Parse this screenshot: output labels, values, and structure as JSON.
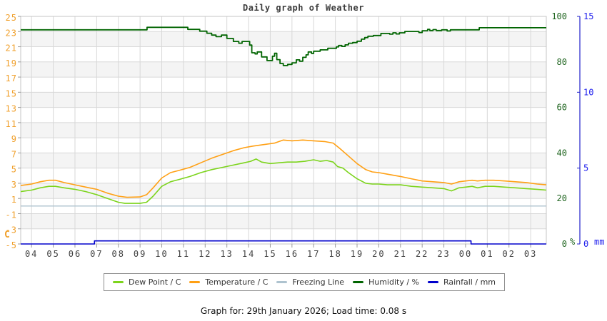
{
  "chart_data": {
    "type": "line",
    "title": "Daily graph of Weather",
    "x_axis": {
      "start_hour": 3.5,
      "end_hour": 27.72,
      "tick_hours": [
        4,
        5,
        6,
        7,
        8,
        9,
        10,
        11,
        12,
        13,
        14,
        15,
        16,
        17,
        18,
        19,
        20,
        21,
        22,
        23,
        24,
        25,
        26,
        27
      ],
      "tick_labels": [
        "04",
        "05",
        "06",
        "07",
        "08",
        "09",
        "10",
        "11",
        "12",
        "13",
        "14",
        "15",
        "16",
        "17",
        "18",
        "19",
        "20",
        "21",
        "22",
        "23",
        "00",
        "01",
        "02",
        "03"
      ]
    },
    "y_left": {
      "unit": "C",
      "min": -5,
      "max": 25,
      "step": 2,
      "tick_labels": [
        "25",
        "23",
        "21",
        "19",
        "17",
        "15",
        "13",
        "11",
        "9",
        "7",
        "5",
        "3",
        "1",
        "-1",
        "-3",
        "-5"
      ],
      "label_color": "#F0A02C"
    },
    "y_right_pct": {
      "unit": "%",
      "min": 0,
      "max": 100,
      "ticks": [
        100,
        80,
        60,
        40,
        20,
        0
      ],
      "tick_labels": [
        "100",
        "80",
        "60",
        "40",
        "20",
        "0"
      ],
      "label_color": "#1E641E"
    },
    "y_right_mm": {
      "unit": "mm",
      "min": 0,
      "max": 15,
      "ticks": [
        15,
        10,
        5,
        0
      ],
      "tick_labels": [
        "15",
        "10",
        "5",
        "0"
      ],
      "label_color": "#2222EE",
      "axis_color": "#2222CC"
    },
    "grid": {
      "band_fill": "#f4f4f4",
      "line_color": "#d8d8d8",
      "frame_color": "#c4c4c4",
      "tick_color": "#9a9a9a",
      "x_label_color": "#3f3f3f"
    },
    "series": [
      {
        "name": "freezing-line",
        "label": "Freezing Line",
        "color": "#AEC3CF",
        "axis": "left",
        "mode": "linear",
        "width": 1.4,
        "points": [
          [
            3.5,
            0
          ],
          [
            27.72,
            0
          ]
        ]
      },
      {
        "name": "dew-point",
        "label": "Dew Point / C",
        "color": "#7CD41C",
        "axis": "left",
        "mode": "linear",
        "width": 1.6,
        "points": [
          [
            3.5,
            1.9
          ],
          [
            4.0,
            2.1
          ],
          [
            4.4,
            2.4
          ],
          [
            4.8,
            2.6
          ],
          [
            5.1,
            2.6
          ],
          [
            5.5,
            2.4
          ],
          [
            6.0,
            2.2
          ],
          [
            6.5,
            1.9
          ],
          [
            7.0,
            1.5
          ],
          [
            7.5,
            1.0
          ],
          [
            8.0,
            0.5
          ],
          [
            8.3,
            0.35
          ],
          [
            9.0,
            0.35
          ],
          [
            9.3,
            0.5
          ],
          [
            9.6,
            1.3
          ],
          [
            10.0,
            2.6
          ],
          [
            10.4,
            3.2
          ],
          [
            10.8,
            3.5
          ],
          [
            11.3,
            3.9
          ],
          [
            11.8,
            4.4
          ],
          [
            12.3,
            4.8
          ],
          [
            12.8,
            5.1
          ],
          [
            13.3,
            5.4
          ],
          [
            13.8,
            5.7
          ],
          [
            14.1,
            5.9
          ],
          [
            14.35,
            6.2
          ],
          [
            14.6,
            5.8
          ],
          [
            15.0,
            5.6
          ],
          [
            15.4,
            5.7
          ],
          [
            15.8,
            5.8
          ],
          [
            16.2,
            5.8
          ],
          [
            16.6,
            5.9
          ],
          [
            17.0,
            6.1
          ],
          [
            17.3,
            5.9
          ],
          [
            17.6,
            6.0
          ],
          [
            17.9,
            5.8
          ],
          [
            18.1,
            5.2
          ],
          [
            18.35,
            5.0
          ],
          [
            18.6,
            4.4
          ],
          [
            19.0,
            3.6
          ],
          [
            19.4,
            3.0
          ],
          [
            19.7,
            2.9
          ],
          [
            20.0,
            2.9
          ],
          [
            20.4,
            2.8
          ],
          [
            21.0,
            2.8
          ],
          [
            21.5,
            2.6
          ],
          [
            22.0,
            2.5
          ],
          [
            22.5,
            2.4
          ],
          [
            23.0,
            2.3
          ],
          [
            23.35,
            2.0
          ],
          [
            23.7,
            2.4
          ],
          [
            24.0,
            2.5
          ],
          [
            24.3,
            2.6
          ],
          [
            24.55,
            2.4
          ],
          [
            24.9,
            2.6
          ],
          [
            25.3,
            2.6
          ],
          [
            25.8,
            2.5
          ],
          [
            26.3,
            2.4
          ],
          [
            26.8,
            2.3
          ],
          [
            27.3,
            2.2
          ],
          [
            27.72,
            2.1
          ]
        ]
      },
      {
        "name": "temperature",
        "label": "Temperature / C",
        "color": "#FFA014",
        "axis": "left",
        "mode": "linear",
        "width": 1.6,
        "points": [
          [
            3.5,
            2.7
          ],
          [
            4.0,
            2.9
          ],
          [
            4.4,
            3.2
          ],
          [
            4.8,
            3.4
          ],
          [
            5.1,
            3.4
          ],
          [
            5.5,
            3.1
          ],
          [
            6.0,
            2.8
          ],
          [
            6.5,
            2.5
          ],
          [
            7.0,
            2.2
          ],
          [
            7.5,
            1.7
          ],
          [
            8.0,
            1.3
          ],
          [
            8.4,
            1.15
          ],
          [
            9.0,
            1.2
          ],
          [
            9.3,
            1.5
          ],
          [
            9.6,
            2.4
          ],
          [
            10.0,
            3.7
          ],
          [
            10.4,
            4.4
          ],
          [
            10.8,
            4.7
          ],
          [
            11.3,
            5.1
          ],
          [
            11.8,
            5.7
          ],
          [
            12.3,
            6.3
          ],
          [
            12.8,
            6.8
          ],
          [
            13.3,
            7.3
          ],
          [
            13.8,
            7.7
          ],
          [
            14.2,
            7.9
          ],
          [
            14.7,
            8.1
          ],
          [
            15.2,
            8.3
          ],
          [
            15.6,
            8.7
          ],
          [
            16.0,
            8.6
          ],
          [
            16.5,
            8.7
          ],
          [
            17.0,
            8.6
          ],
          [
            17.5,
            8.5
          ],
          [
            17.9,
            8.3
          ],
          [
            18.2,
            7.6
          ],
          [
            18.6,
            6.6
          ],
          [
            19.0,
            5.6
          ],
          [
            19.4,
            4.8
          ],
          [
            19.7,
            4.5
          ],
          [
            20.0,
            4.4
          ],
          [
            20.4,
            4.2
          ],
          [
            21.0,
            3.9
          ],
          [
            21.5,
            3.6
          ],
          [
            22.0,
            3.3
          ],
          [
            22.5,
            3.2
          ],
          [
            23.0,
            3.1
          ],
          [
            23.35,
            2.9
          ],
          [
            23.7,
            3.2
          ],
          [
            24.0,
            3.3
          ],
          [
            24.3,
            3.4
          ],
          [
            24.55,
            3.3
          ],
          [
            24.9,
            3.4
          ],
          [
            25.3,
            3.4
          ],
          [
            25.8,
            3.3
          ],
          [
            26.3,
            3.2
          ],
          [
            26.8,
            3.1
          ],
          [
            27.3,
            2.9
          ],
          [
            27.72,
            2.8
          ]
        ]
      },
      {
        "name": "humidity",
        "label": "Humidity / %",
        "color": "#006400",
        "axis": "pct",
        "mode": "step",
        "width": 1.8,
        "points": [
          [
            3.5,
            94.1
          ],
          [
            9.32,
            95.2
          ],
          [
            11.2,
            94.3
          ],
          [
            11.75,
            93.5
          ],
          [
            12.08,
            92.6
          ],
          [
            12.3,
            91.8
          ],
          [
            12.5,
            91.1
          ],
          [
            12.75,
            91.8
          ],
          [
            13.0,
            90.3
          ],
          [
            13.3,
            89.0
          ],
          [
            13.55,
            88.2
          ],
          [
            13.7,
            89.0
          ],
          [
            14.05,
            87.4
          ],
          [
            14.15,
            84.0
          ],
          [
            14.3,
            83.5
          ],
          [
            14.4,
            84.4
          ],
          [
            14.6,
            82.2
          ],
          [
            14.85,
            80.6
          ],
          [
            15.1,
            82.5
          ],
          [
            15.2,
            83.8
          ],
          [
            15.3,
            81.0
          ],
          [
            15.45,
            79.3
          ],
          [
            15.6,
            78.4
          ],
          [
            15.8,
            78.9
          ],
          [
            16.0,
            79.6
          ],
          [
            16.2,
            80.9
          ],
          [
            16.35,
            80.3
          ],
          [
            16.5,
            82.0
          ],
          [
            16.65,
            83.1
          ],
          [
            16.75,
            84.4
          ],
          [
            16.9,
            83.7
          ],
          [
            17.0,
            84.7
          ],
          [
            17.3,
            85.3
          ],
          [
            17.65,
            86.0
          ],
          [
            18.05,
            86.6
          ],
          [
            18.15,
            87.2
          ],
          [
            18.3,
            86.8
          ],
          [
            18.45,
            87.5
          ],
          [
            18.6,
            88.2
          ],
          [
            18.8,
            88.5
          ],
          [
            19.0,
            89.1
          ],
          [
            19.2,
            90.0
          ],
          [
            19.35,
            90.7
          ],
          [
            19.5,
            91.3
          ],
          [
            19.75,
            91.6
          ],
          [
            20.1,
            92.5
          ],
          [
            20.5,
            92.2
          ],
          [
            20.65,
            92.8
          ],
          [
            20.8,
            92.3
          ],
          [
            20.95,
            92.8
          ],
          [
            21.2,
            93.4
          ],
          [
            21.85,
            92.9
          ],
          [
            22.0,
            93.7
          ],
          [
            22.25,
            94.3
          ],
          [
            22.35,
            93.8
          ],
          [
            22.5,
            94.2
          ],
          [
            22.65,
            93.8
          ],
          [
            22.9,
            94.1
          ],
          [
            23.15,
            93.6
          ],
          [
            23.3,
            94.1
          ],
          [
            24.63,
            95.0
          ],
          [
            27.72,
            95.0
          ]
        ]
      },
      {
        "name": "rainfall",
        "label": "Rainfall / mm",
        "color": "#0000CC",
        "axis": "mm",
        "mode": "step",
        "width": 1.6,
        "points": [
          [
            3.5,
            0
          ],
          [
            6.9,
            0.2
          ],
          [
            24.25,
            0.0
          ],
          [
            27.72,
            0.0
          ]
        ]
      }
    ],
    "legend_position": "bottom"
  },
  "footer": {
    "caption": "Graph for: 29th January 2026; Load time: 0.08 s"
  }
}
